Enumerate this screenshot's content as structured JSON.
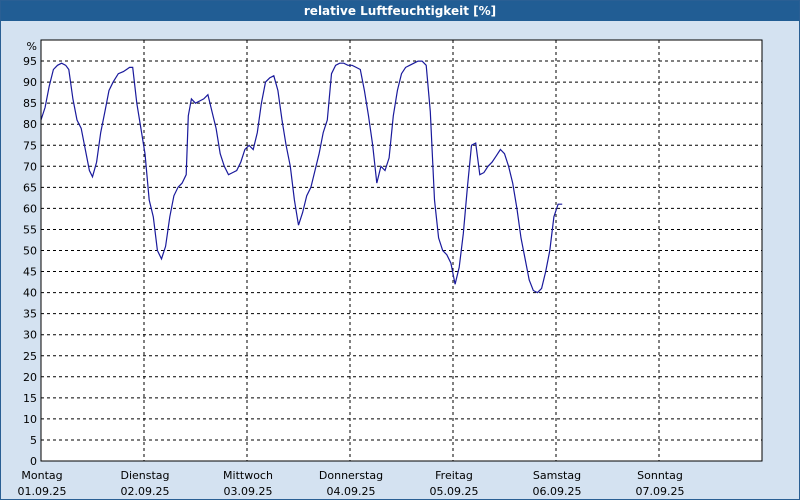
{
  "window": {
    "title": "relative Luftfeuchtigkeit [%]"
  },
  "colors": {
    "titlebar": "#215d94",
    "background": "#d4e2f1",
    "plot": "#ffffff",
    "line": "#1a1a9c",
    "grid": "#000000"
  },
  "chart_data": {
    "type": "line",
    "title": "relative Luftfeuchtigkeit [%]",
    "ylabel": "%",
    "xlabel": "",
    "ylim": [
      0,
      100
    ],
    "yticks": [
      0,
      5,
      10,
      15,
      20,
      25,
      30,
      35,
      40,
      45,
      50,
      55,
      60,
      65,
      70,
      75,
      80,
      85,
      90,
      95
    ],
    "grid": true,
    "xlim": [
      0,
      7
    ],
    "xticks": [
      {
        "day": "Montag",
        "date": "01.09.25"
      },
      {
        "day": "Dienstag",
        "date": "02.09.25"
      },
      {
        "day": "Mittwoch",
        "date": "03.09.25"
      },
      {
        "day": "Donnerstag",
        "date": "04.09.25"
      },
      {
        "day": "Freitag",
        "date": "05.09.25"
      },
      {
        "day": "Samstag",
        "date": "06.09.25"
      },
      {
        "day": "Sonntag",
        "date": "07.09.25"
      }
    ],
    "series": [
      {
        "values": [
          [
            0.0,
            81
          ],
          [
            0.04,
            84
          ],
          [
            0.08,
            89
          ],
          [
            0.12,
            93
          ],
          [
            0.16,
            94
          ],
          [
            0.2,
            94.5
          ],
          [
            0.24,
            94
          ],
          [
            0.27,
            93
          ],
          [
            0.31,
            86
          ],
          [
            0.35,
            81
          ],
          [
            0.39,
            79
          ],
          [
            0.43,
            74
          ],
          [
            0.47,
            69
          ],
          [
            0.5,
            67.5
          ],
          [
            0.54,
            71
          ],
          [
            0.58,
            78
          ],
          [
            0.62,
            83
          ],
          [
            0.66,
            88
          ],
          [
            0.7,
            90
          ],
          [
            0.75,
            92
          ],
          [
            0.8,
            92.5
          ],
          [
            0.86,
            93.5
          ],
          [
            0.89,
            93.5
          ],
          [
            0.93,
            85
          ],
          [
            0.97,
            79
          ],
          [
            1.01,
            73
          ],
          [
            1.05,
            62
          ],
          [
            1.09,
            58
          ],
          [
            1.13,
            50
          ],
          [
            1.17,
            48
          ],
          [
            1.21,
            51
          ],
          [
            1.25,
            58
          ],
          [
            1.29,
            63
          ],
          [
            1.33,
            65
          ],
          [
            1.37,
            66
          ],
          [
            1.41,
            68
          ],
          [
            1.43,
            82
          ],
          [
            1.46,
            86
          ],
          [
            1.5,
            85
          ],
          [
            1.54,
            85.5
          ],
          [
            1.58,
            86
          ],
          [
            1.62,
            87
          ],
          [
            1.66,
            83
          ],
          [
            1.7,
            79
          ],
          [
            1.74,
            73
          ],
          [
            1.78,
            70
          ],
          [
            1.82,
            68
          ],
          [
            1.86,
            68.5
          ],
          [
            1.9,
            69
          ],
          [
            1.94,
            71
          ],
          [
            1.98,
            74
          ],
          [
            2.02,
            75
          ],
          [
            2.06,
            74
          ],
          [
            2.1,
            78
          ],
          [
            2.14,
            85
          ],
          [
            2.18,
            90
          ],
          [
            2.22,
            91
          ],
          [
            2.26,
            91.5
          ],
          [
            2.3,
            88
          ],
          [
            2.34,
            81
          ],
          [
            2.38,
            75
          ],
          [
            2.42,
            70
          ],
          [
            2.46,
            62
          ],
          [
            2.5,
            56
          ],
          [
            2.54,
            59
          ],
          [
            2.58,
            63
          ],
          [
            2.62,
            65
          ],
          [
            2.66,
            69
          ],
          [
            2.7,
            73
          ],
          [
            2.74,
            78
          ],
          [
            2.78,
            81
          ],
          [
            2.82,
            92
          ],
          [
            2.86,
            94
          ],
          [
            2.9,
            94.5
          ],
          [
            2.94,
            94.5
          ],
          [
            2.98,
            94
          ],
          [
            3.02,
            94
          ],
          [
            3.06,
            93.5
          ],
          [
            3.1,
            93
          ],
          [
            3.14,
            88
          ],
          [
            3.18,
            82
          ],
          [
            3.22,
            75
          ],
          [
            3.26,
            66
          ],
          [
            3.3,
            70
          ],
          [
            3.34,
            69
          ],
          [
            3.38,
            72
          ],
          [
            3.42,
            82
          ],
          [
            3.46,
            88
          ],
          [
            3.5,
            92
          ],
          [
            3.54,
            93.5
          ],
          [
            3.58,
            94
          ],
          [
            3.62,
            94.5
          ],
          [
            3.66,
            95
          ],
          [
            3.7,
            95
          ],
          [
            3.74,
            94
          ],
          [
            3.78,
            83
          ],
          [
            3.82,
            62
          ],
          [
            3.86,
            53
          ],
          [
            3.9,
            50
          ],
          [
            3.94,
            49
          ],
          [
            3.98,
            47
          ],
          [
            4.02,
            42
          ],
          [
            4.06,
            46
          ],
          [
            4.1,
            54
          ],
          [
            4.14,
            65
          ],
          [
            4.18,
            75
          ],
          [
            4.22,
            75.5
          ],
          [
            4.26,
            68
          ],
          [
            4.3,
            68.5
          ],
          [
            4.34,
            70
          ],
          [
            4.38,
            71
          ],
          [
            4.42,
            72.5
          ],
          [
            4.46,
            74
          ],
          [
            4.5,
            73
          ],
          [
            4.54,
            70
          ],
          [
            4.58,
            66
          ],
          [
            4.62,
            60
          ],
          [
            4.66,
            53
          ],
          [
            4.7,
            48
          ],
          [
            4.74,
            43
          ],
          [
            4.78,
            40.5
          ],
          [
            4.82,
            40
          ],
          [
            4.86,
            41
          ],
          [
            4.9,
            45
          ],
          [
            4.94,
            50
          ],
          [
            4.98,
            58
          ],
          [
            5.02,
            61
          ],
          [
            5.06,
            61
          ]
        ]
      }
    ]
  }
}
